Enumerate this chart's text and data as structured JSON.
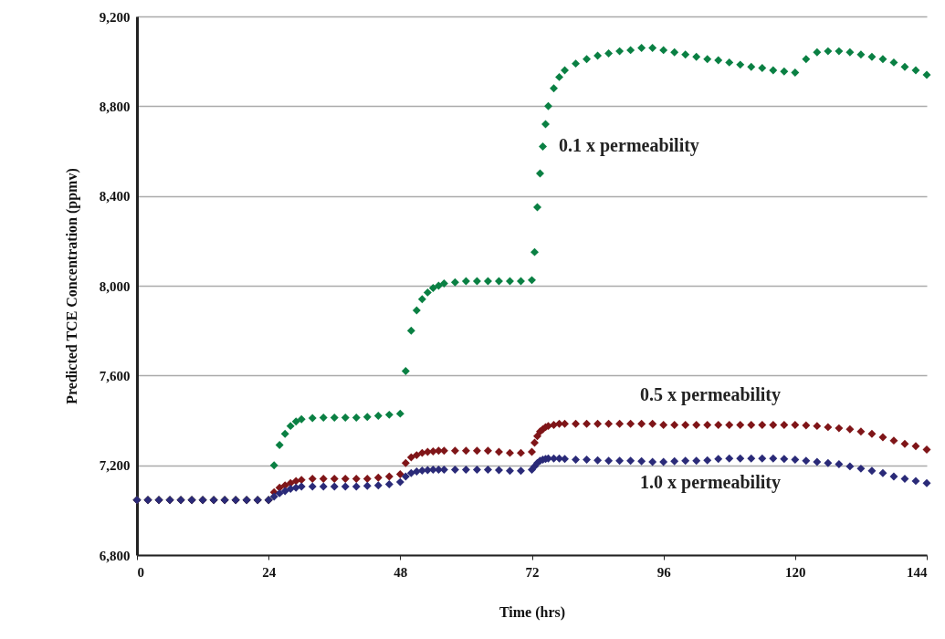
{
  "chart_data": {
    "type": "scatter",
    "xlabel": "Time (hrs)",
    "ylabel": "Predicted TCE Concentration (ppmv)",
    "x": [
      0,
      2,
      4,
      6,
      8,
      10,
      12,
      14,
      16,
      18,
      20,
      22,
      24,
      25,
      26,
      27,
      28,
      29,
      30,
      32,
      34,
      36,
      38,
      40,
      42,
      44,
      46,
      48,
      49,
      50,
      51,
      52,
      53,
      54,
      55,
      56,
      58,
      60,
      62,
      64,
      66,
      68,
      70,
      72,
      72.5,
      73,
      73.5,
      74,
      74.5,
      75,
      76,
      77,
      78,
      80,
      82,
      84,
      86,
      88,
      90,
      92,
      94,
      96,
      98,
      100,
      102,
      104,
      106,
      108,
      110,
      112,
      114,
      116,
      118,
      120,
      122,
      124,
      126,
      128,
      130,
      132,
      134,
      136,
      138,
      140,
      142,
      144
    ],
    "series": [
      {
        "name": "0.1 x permeability",
        "color": "#0a8043",
        "values": [
          7045,
          7045,
          7045,
          7045,
          7045,
          7045,
          7045,
          7045,
          7045,
          7045,
          7045,
          7045,
          7045,
          7200,
          7290,
          7340,
          7375,
          7395,
          7405,
          7410,
          7412,
          7412,
          7412,
          7412,
          7415,
          7420,
          7425,
          7430,
          7620,
          7800,
          7890,
          7940,
          7970,
          7990,
          8000,
          8010,
          8015,
          8020,
          8020,
          8020,
          8020,
          8020,
          8020,
          8025,
          8150,
          8350,
          8500,
          8620,
          8720,
          8800,
          8880,
          8930,
          8960,
          8990,
          9010,
          9025,
          9035,
          9045,
          9050,
          9060,
          9060,
          9050,
          9040,
          9030,
          9020,
          9010,
          9005,
          8995,
          8985,
          8975,
          8970,
          8960,
          8955,
          8950,
          9010,
          9040,
          9045,
          9045,
          9040,
          9030,
          9020,
          9010,
          8995,
          8975,
          8960,
          8940
        ]
      },
      {
        "name": "0.5 x permeability",
        "color": "#7f1518",
        "values": [
          7045,
          7045,
          7045,
          7045,
          7045,
          7045,
          7045,
          7045,
          7045,
          7045,
          7045,
          7045,
          7045,
          7080,
          7100,
          7110,
          7120,
          7130,
          7135,
          7140,
          7140,
          7140,
          7140,
          7140,
          7140,
          7145,
          7150,
          7160,
          7210,
          7235,
          7245,
          7255,
          7260,
          7262,
          7265,
          7265,
          7265,
          7265,
          7265,
          7265,
          7260,
          7255,
          7255,
          7260,
          7300,
          7330,
          7350,
          7360,
          7370,
          7375,
          7380,
          7385,
          7385,
          7385,
          7385,
          7385,
          7385,
          7385,
          7385,
          7385,
          7385,
          7380,
          7380,
          7380,
          7380,
          7380,
          7380,
          7380,
          7380,
          7380,
          7380,
          7380,
          7380,
          7380,
          7378,
          7375,
          7370,
          7365,
          7360,
          7350,
          7340,
          7325,
          7310,
          7295,
          7285,
          7270
        ]
      },
      {
        "name": "1.0 x permeability",
        "color": "#2a2a78",
        "values": [
          7045,
          7045,
          7045,
          7045,
          7045,
          7045,
          7045,
          7045,
          7045,
          7045,
          7045,
          7045,
          7045,
          7060,
          7075,
          7085,
          7095,
          7100,
          7105,
          7105,
          7105,
          7105,
          7105,
          7105,
          7108,
          7110,
          7115,
          7125,
          7150,
          7165,
          7172,
          7176,
          7178,
          7180,
          7180,
          7180,
          7180,
          7180,
          7180,
          7180,
          7178,
          7175,
          7175,
          7180,
          7195,
          7210,
          7220,
          7225,
          7228,
          7230,
          7230,
          7230,
          7228,
          7225,
          7225,
          7222,
          7220,
          7220,
          7220,
          7218,
          7215,
          7215,
          7218,
          7220,
          7220,
          7222,
          7228,
          7230,
          7230,
          7230,
          7230,
          7230,
          7228,
          7225,
          7220,
          7215,
          7210,
          7205,
          7195,
          7185,
          7175,
          7165,
          7150,
          7140,
          7130,
          7120
        ]
      }
    ],
    "xlim": [
      0,
      144
    ],
    "xticks": [
      0,
      24,
      48,
      72,
      96,
      120,
      144
    ],
    "ylim": [
      6800,
      9200
    ],
    "yticks": [
      {
        "value": 6800,
        "label": "6,800"
      },
      {
        "value": 7200,
        "label": "7,200"
      },
      {
        "value": 7600,
        "label": "7,600"
      },
      {
        "value": 8000,
        "label": "8,000"
      },
      {
        "value": 8400,
        "label": "8,400"
      },
      {
        "value": 8800,
        "label": "8,800"
      },
      {
        "value": 9200,
        "label": "9,200"
      }
    ],
    "grid": "y",
    "marker": "diamond",
    "legend": false
  }
}
